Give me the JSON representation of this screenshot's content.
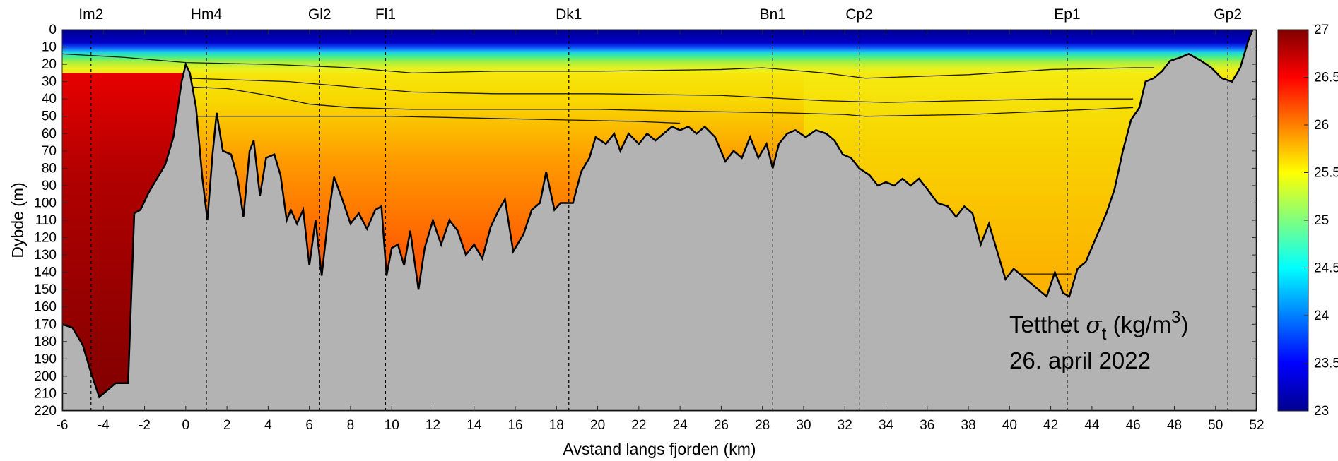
{
  "chart_data": {
    "type": "heatmap",
    "xlabel": "Avstand langs fjorden (km)",
    "ylabel": "Dybde (m)",
    "xlim": [
      -6,
      52
    ],
    "ylim": [
      0,
      220
    ],
    "y_reversed": true,
    "x_ticks": [
      -6,
      -4,
      -2,
      0,
      2,
      4,
      6,
      8,
      10,
      12,
      14,
      16,
      18,
      20,
      22,
      24,
      26,
      28,
      30,
      32,
      34,
      36,
      38,
      40,
      42,
      44,
      46,
      48,
      50,
      52
    ],
    "y_ticks": [
      0,
      10,
      20,
      30,
      40,
      50,
      60,
      70,
      80,
      90,
      100,
      110,
      120,
      130,
      140,
      150,
      160,
      170,
      180,
      190,
      200,
      210,
      220
    ],
    "stations": [
      {
        "name": "Im2",
        "km": -4.6
      },
      {
        "name": "Hm4",
        "km": 1.0
      },
      {
        "name": "Gl2",
        "km": 6.5
      },
      {
        "name": "Fl1",
        "km": 9.7
      },
      {
        "name": "Dk1",
        "km": 18.6
      },
      {
        "name": "Bn1",
        "km": 28.5
      },
      {
        "name": "Cp2",
        "km": 32.7
      },
      {
        "name": "Ep1",
        "km": 42.8
      },
      {
        "name": "Gp2",
        "km": 50.6
      }
    ],
    "colorbar": {
      "min": 23,
      "max": 27,
      "ticks": [
        "23",
        "23.5",
        "24",
        "24.5",
        "25",
        "25.5",
        "26",
        "26.5",
        "27"
      ],
      "colormap": "jet"
    },
    "annotation": {
      "line1_prefix": "Tetthet ",
      "sigma": "σ",
      "sub": "t",
      "line1_units": " (kg/m",
      "sup": "3",
      "line1_close": ")",
      "line2": "26. april 2022"
    },
    "bottom_profile": [
      [
        -6,
        170
      ],
      [
        -5.5,
        172
      ],
      [
        -5,
        182
      ],
      [
        -4.6,
        198
      ],
      [
        -4.2,
        212
      ],
      [
        -3.8,
        208
      ],
      [
        -3.4,
        204
      ],
      [
        -2.8,
        204
      ],
      [
        -2.5,
        106
      ],
      [
        -2.2,
        104
      ],
      [
        -1.8,
        94
      ],
      [
        -1.4,
        86
      ],
      [
        -1,
        78
      ],
      [
        -0.6,
        62
      ],
      [
        -0.2,
        30
      ],
      [
        0,
        20
      ],
      [
        0.2,
        25
      ],
      [
        0.5,
        45
      ],
      [
        0.8,
        85
      ],
      [
        1.05,
        110
      ],
      [
        1.3,
        72
      ],
      [
        1.5,
        48
      ],
      [
        1.8,
        70
      ],
      [
        2.2,
        72
      ],
      [
        2.5,
        85
      ],
      [
        2.8,
        108
      ],
      [
        3.1,
        70
      ],
      [
        3.3,
        64
      ],
      [
        3.6,
        96
      ],
      [
        3.9,
        74
      ],
      [
        4.3,
        72
      ],
      [
        4.6,
        84
      ],
      [
        4.9,
        110
      ],
      [
        5.1,
        104
      ],
      [
        5.4,
        112
      ],
      [
        5.7,
        104
      ],
      [
        6.0,
        136
      ],
      [
        6.3,
        110
      ],
      [
        6.6,
        142
      ],
      [
        6.9,
        110
      ],
      [
        7.2,
        85
      ],
      [
        7.6,
        98
      ],
      [
        8.0,
        112
      ],
      [
        8.4,
        106
      ],
      [
        8.8,
        115
      ],
      [
        9.2,
        104
      ],
      [
        9.5,
        102
      ],
      [
        9.75,
        142
      ],
      [
        10.0,
        126
      ],
      [
        10.3,
        124
      ],
      [
        10.6,
        136
      ],
      [
        10.9,
        116
      ],
      [
        11.3,
        150
      ],
      [
        11.6,
        126
      ],
      [
        12.0,
        110
      ],
      [
        12.4,
        124
      ],
      [
        12.8,
        110
      ],
      [
        13.2,
        116
      ],
      [
        13.6,
        130
      ],
      [
        14.0,
        124
      ],
      [
        14.4,
        132
      ],
      [
        14.8,
        114
      ],
      [
        15.2,
        104
      ],
      [
        15.5,
        98
      ],
      [
        15.9,
        128
      ],
      [
        16.4,
        118
      ],
      [
        16.8,
        104
      ],
      [
        17.2,
        100
      ],
      [
        17.5,
        82
      ],
      [
        17.9,
        104
      ],
      [
        18.2,
        100
      ],
      [
        18.8,
        100
      ],
      [
        19.2,
        82
      ],
      [
        19.6,
        74
      ],
      [
        19.9,
        62
      ],
      [
        20.4,
        66
      ],
      [
        20.8,
        60
      ],
      [
        21.1,
        70
      ],
      [
        21.5,
        60
      ],
      [
        22.0,
        66
      ],
      [
        22.4,
        60
      ],
      [
        22.8,
        64
      ],
      [
        23.2,
        60
      ],
      [
        23.6,
        56
      ],
      [
        24.0,
        58
      ],
      [
        24.4,
        56
      ],
      [
        24.8,
        60
      ],
      [
        25.2,
        56
      ],
      [
        25.7,
        62
      ],
      [
        26.2,
        76
      ],
      [
        26.6,
        70
      ],
      [
        27.0,
        74
      ],
      [
        27.4,
        62
      ],
      [
        27.8,
        74
      ],
      [
        28.2,
        66
      ],
      [
        28.5,
        80
      ],
      [
        28.8,
        66
      ],
      [
        29.2,
        60
      ],
      [
        29.6,
        58
      ],
      [
        30.1,
        62
      ],
      [
        30.6,
        58
      ],
      [
        31.1,
        60
      ],
      [
        31.5,
        64
      ],
      [
        31.9,
        72
      ],
      [
        32.3,
        74
      ],
      [
        32.7,
        80
      ],
      [
        33.2,
        84
      ],
      [
        33.6,
        90
      ],
      [
        34.0,
        88
      ],
      [
        34.4,
        90
      ],
      [
        34.8,
        86
      ],
      [
        35.2,
        90
      ],
      [
        35.6,
        86
      ],
      [
        36.0,
        92
      ],
      [
        36.5,
        100
      ],
      [
        37.0,
        102
      ],
      [
        37.4,
        108
      ],
      [
        37.8,
        102
      ],
      [
        38.2,
        106
      ],
      [
        38.6,
        124
      ],
      [
        39.0,
        112
      ],
      [
        39.4,
        128
      ],
      [
        39.8,
        144
      ],
      [
        40.2,
        138
      ],
      [
        40.6,
        142
      ],
      [
        41.0,
        146
      ],
      [
        41.4,
        150
      ],
      [
        41.8,
        154
      ],
      [
        42.2,
        140
      ],
      [
        42.6,
        152
      ],
      [
        42.9,
        154
      ],
      [
        43.3,
        138
      ],
      [
        43.7,
        134
      ],
      [
        44.2,
        120
      ],
      [
        44.7,
        106
      ],
      [
        45.1,
        92
      ],
      [
        45.5,
        70
      ],
      [
        45.9,
        52
      ],
      [
        46.3,
        45
      ],
      [
        46.6,
        30
      ],
      [
        47.0,
        28
      ],
      [
        47.4,
        24
      ],
      [
        47.8,
        18
      ],
      [
        48.3,
        16
      ],
      [
        48.7,
        14
      ],
      [
        49.3,
        18
      ],
      [
        49.8,
        22
      ],
      [
        50.3,
        28
      ],
      [
        50.8,
        30
      ],
      [
        51.2,
        22
      ],
      [
        51.6,
        6
      ],
      [
        51.8,
        0
      ],
      [
        52,
        0
      ]
    ],
    "isopycnal_contours": [
      [
        [
          -6,
          14
        ],
        [
          -3,
          16
        ],
        [
          -1,
          18
        ],
        [
          0,
          19
        ],
        [
          4,
          20
        ],
        [
          8,
          22
        ],
        [
          11,
          25
        ],
        [
          15,
          24
        ],
        [
          20,
          24
        ],
        [
          26,
          23
        ],
        [
          28,
          22
        ],
        [
          31,
          25
        ],
        [
          33,
          28
        ],
        [
          38,
          26
        ],
        [
          42,
          23
        ],
        [
          46,
          22
        ],
        [
          47,
          22
        ]
      ],
      [
        [
          0,
          28
        ],
        [
          5,
          30
        ],
        [
          8,
          33
        ],
        [
          11,
          36
        ],
        [
          15,
          37
        ],
        [
          20,
          37
        ],
        [
          26,
          38
        ],
        [
          31,
          41
        ],
        [
          34,
          42
        ],
        [
          38,
          41
        ],
        [
          42,
          40
        ],
        [
          44,
          40
        ],
        [
          46,
          40
        ]
      ],
      [
        [
          0,
          33
        ],
        [
          2,
          34
        ],
        [
          4,
          38
        ],
        [
          6,
          43
        ],
        [
          8,
          45
        ],
        [
          11,
          46
        ],
        [
          15,
          46
        ],
        [
          20,
          46
        ],
        [
          24,
          47
        ],
        [
          29,
          48
        ],
        [
          32,
          49
        ],
        [
          33,
          50
        ],
        [
          38,
          49
        ],
        [
          42,
          47
        ],
        [
          44,
          46
        ],
        [
          46,
          45
        ]
      ],
      [
        [
          0,
          50
        ],
        [
          10,
          50
        ],
        [
          18,
          52
        ],
        [
          22,
          53
        ],
        [
          24,
          54
        ]
      ],
      [
        [
          40,
          141
        ],
        [
          43,
          141
        ]
      ]
    ]
  }
}
